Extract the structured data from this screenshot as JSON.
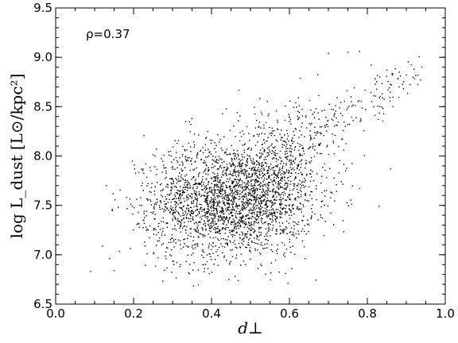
{
  "chart_data": {
    "type": "scatter",
    "title": "",
    "xlabel": "d⊥",
    "ylabel": "log L_dust [L⊙/kpc²]",
    "xlim": [
      0.0,
      1.0
    ],
    "ylim": [
      6.5,
      9.5
    ],
    "x_ticks": [
      "0.0",
      "0.2",
      "0.4",
      "0.6",
      "0.8",
      "1.0"
    ],
    "y_ticks": [
      "6.5",
      "7.0",
      "7.5",
      "8.0",
      "8.5",
      "9.0",
      "9.5"
    ],
    "x_minor_step": 0.05,
    "y_minor_step": 0.1,
    "annotation": "ρ=0.37",
    "grid": false,
    "legend": "none",
    "marker_color": "#000000",
    "n_points_approx": 3000,
    "visible_outlier_points": [
      {
        "x": 0.09,
        "y": 6.83
      },
      {
        "x": 0.15,
        "y": 6.84
      },
      {
        "x": 0.13,
        "y": 7.7
      },
      {
        "x": 0.7,
        "y": 9.04
      },
      {
        "x": 0.75,
        "y": 9.05
      },
      {
        "x": 0.78,
        "y": 9.06
      },
      {
        "x": 0.92,
        "y": 8.88
      },
      {
        "x": 0.93,
        "y": 8.82
      },
      {
        "x": 0.94,
        "y": 8.9
      },
      {
        "x": 0.83,
        "y": 7.49
      },
      {
        "x": 0.86,
        "y": 7.87
      },
      {
        "x": 0.81,
        "y": 8.92
      }
    ],
    "dense_regions": [
      {
        "x_mean": 0.46,
        "x_sd": 0.1,
        "y_mean": 7.55,
        "y_sd": 0.28,
        "count": 2200
      },
      {
        "x_mean": 0.58,
        "x_sd": 0.07,
        "y_mean": 7.95,
        "y_sd": 0.3,
        "count": 450
      },
      {
        "x_mean": 0.32,
        "x_sd": 0.08,
        "y_mean": 7.45,
        "y_sd": 0.35,
        "count": 250
      }
    ],
    "upper_branch": {
      "x_start": 0.65,
      "x_end": 0.94,
      "y_start": 8.2,
      "y_end": 8.85,
      "y_sd": 0.12,
      "count": 150
    }
  }
}
